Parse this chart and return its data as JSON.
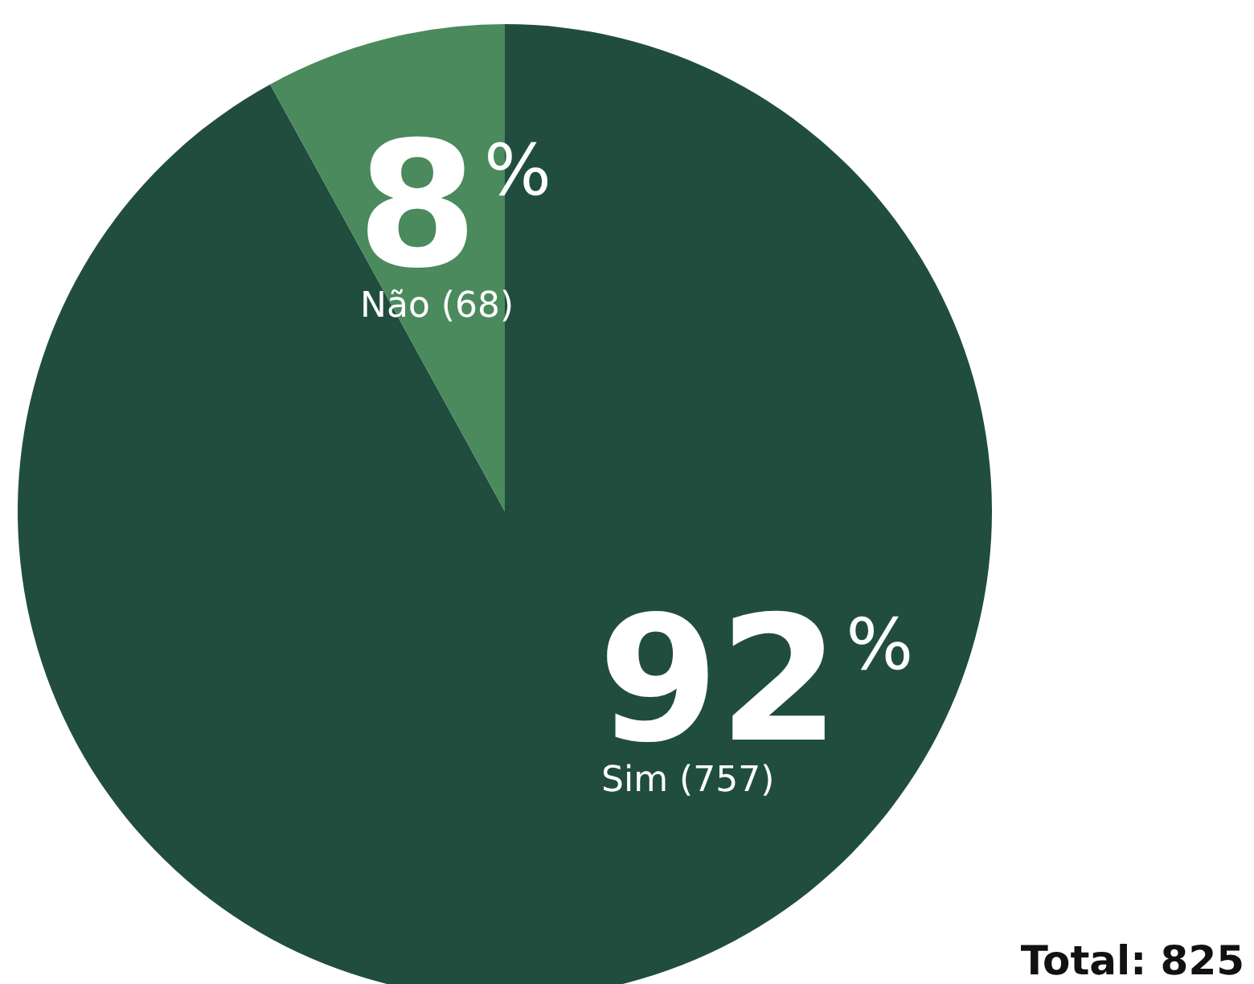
{
  "chart_data": {
    "type": "pie",
    "categories": [
      "Sim (757)",
      "Não (68)"
    ],
    "values": [
      92,
      8
    ],
    "colors": [
      "#214d3f",
      "#4a8a5c"
    ],
    "value_labels": [
      "92%",
      "8%"
    ],
    "annotations": [
      "Total: 825"
    ]
  }
}
